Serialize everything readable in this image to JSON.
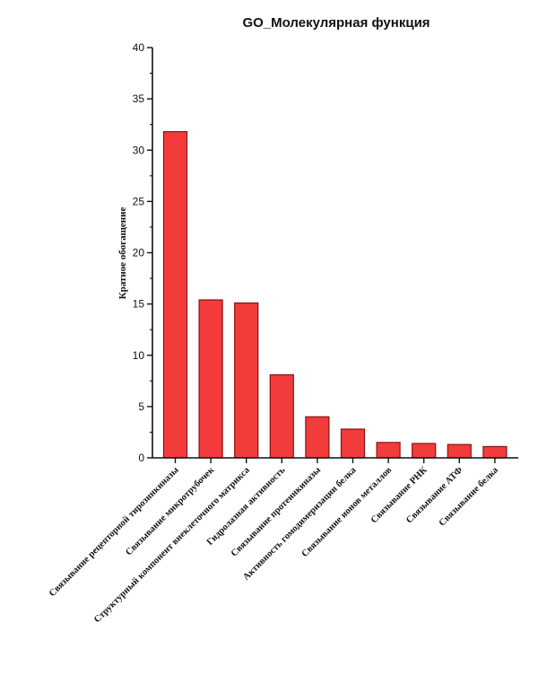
{
  "chart_data": {
    "type": "bar",
    "title": "GO_Молекулярная функция",
    "xlabel": "",
    "ylabel": "Кратное обогащение",
    "ylim": [
      0,
      40
    ],
    "yticks": [
      0,
      5,
      10,
      15,
      20,
      25,
      30,
      35,
      40
    ],
    "grid": false,
    "categories": [
      "Связывание рецепторной тирозинкиназы",
      "Связывание микротрубочек",
      "Структурный компонент внеклеточного матрикса",
      "Гидролазная активность",
      "Связывание протеинкиназы",
      "Активность гомодимеризации белка",
      "Связывание ионов металлов",
      "Связывание РНК",
      "Связывание АТФ",
      "Связывание белка"
    ],
    "values": [
      31.8,
      15.4,
      15.1,
      8.1,
      4.0,
      2.8,
      1.5,
      1.4,
      1.3,
      1.1
    ],
    "colors": {
      "bar_fill": "#f23c3c",
      "bar_stroke": "#8a1010",
      "axis": "#111111"
    }
  }
}
